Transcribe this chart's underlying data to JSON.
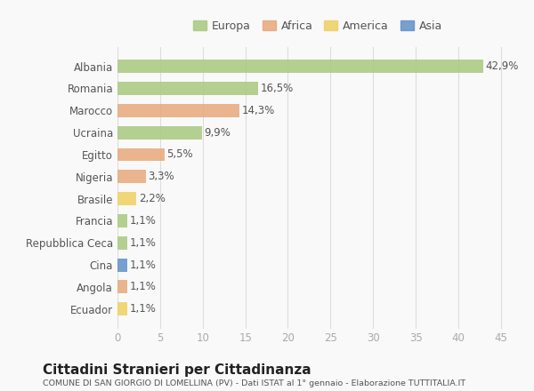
{
  "countries": [
    "Albania",
    "Romania",
    "Marocco",
    "Ucraina",
    "Egitto",
    "Nigeria",
    "Brasile",
    "Francia",
    "Repubblica Ceca",
    "Cina",
    "Angola",
    "Ecuador"
  ],
  "values": [
    42.9,
    16.5,
    14.3,
    9.9,
    5.5,
    3.3,
    2.2,
    1.1,
    1.1,
    1.1,
    1.1,
    1.1
  ],
  "labels": [
    "42,9%",
    "16,5%",
    "14,3%",
    "9,9%",
    "5,5%",
    "3,3%",
    "2,2%",
    "1,1%",
    "1,1%",
    "1,1%",
    "1,1%",
    "1,1%"
  ],
  "continents": [
    "Europa",
    "Europa",
    "Africa",
    "Europa",
    "Africa",
    "Africa",
    "America",
    "Europa",
    "Europa",
    "Asia",
    "Africa",
    "America"
  ],
  "colors": {
    "Europa": "#a8c97f",
    "Africa": "#e8a87c",
    "America": "#f0d060",
    "Asia": "#6090c8"
  },
  "legend_labels": [
    "Europa",
    "Africa",
    "America",
    "Asia"
  ],
  "legend_colors": [
    "#a8c97f",
    "#e8a87c",
    "#f0d060",
    "#6090c8"
  ],
  "title": "Cittadini Stranieri per Cittadinanza",
  "subtitle": "COMUNE DI SAN GIORGIO DI LOMELLINA (PV) - Dati ISTAT al 1° gennaio - Elaborazione TUTTITALIA.IT",
  "xlabel_ticks": [
    0,
    5,
    10,
    15,
    20,
    25,
    30,
    35,
    40,
    45
  ],
  "xlim": [
    0,
    47
  ],
  "background_color": "#f9f9f9",
  "bar_height": 0.6,
  "grid_color": "#dddddd"
}
